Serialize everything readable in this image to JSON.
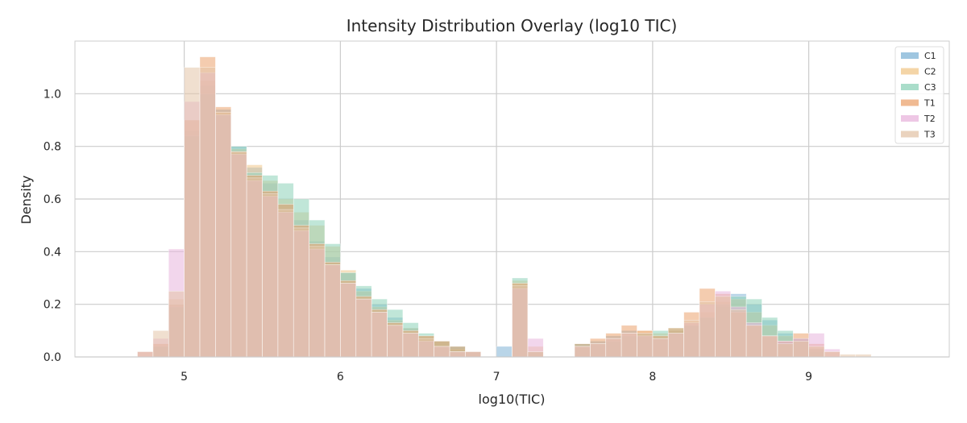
{
  "chart_data": {
    "type": "histogram",
    "title": "Intensity Distribution Overlay (log10 TIC)",
    "xlabel": "log10(TIC)",
    "ylabel": "Density",
    "xlim": [
      4.3,
      9.9
    ],
    "ylim": [
      0,
      1.2
    ],
    "xticks": [
      5,
      6,
      7,
      8,
      9
    ],
    "yticks": [
      0.0,
      0.2,
      0.4,
      0.6,
      0.8,
      1.0
    ],
    "grid": true,
    "legend_position": "top-right",
    "bin_width": 0.1,
    "series": [
      {
        "name": "C1",
        "color": "#7fb3d5",
        "bins": [
          [
            4.85,
            0.04
          ],
          [
            4.95,
            0.2
          ],
          [
            5.05,
            0.86
          ],
          [
            5.15,
            1.03
          ],
          [
            5.25,
            0.94
          ],
          [
            5.35,
            0.8
          ],
          [
            5.45,
            0.72
          ],
          [
            5.55,
            0.66
          ],
          [
            5.65,
            0.58
          ],
          [
            5.75,
            0.52
          ],
          [
            5.85,
            0.44
          ],
          [
            5.95,
            0.38
          ],
          [
            6.05,
            0.32
          ],
          [
            6.15,
            0.26
          ],
          [
            6.25,
            0.2
          ],
          [
            6.35,
            0.15
          ],
          [
            6.45,
            0.11
          ],
          [
            6.55,
            0.08
          ],
          [
            6.65,
            0.06
          ],
          [
            6.75,
            0.04
          ],
          [
            6.85,
            0.02
          ],
          [
            7.05,
            0.04
          ],
          [
            7.15,
            0.27
          ],
          [
            7.25,
            0.02
          ],
          [
            7.55,
            0.05
          ],
          [
            7.65,
            0.06
          ],
          [
            7.75,
            0.08
          ],
          [
            7.85,
            0.1
          ],
          [
            7.95,
            0.09
          ],
          [
            8.05,
            0.08
          ],
          [
            8.15,
            0.1
          ],
          [
            8.25,
            0.12
          ],
          [
            8.35,
            0.15
          ],
          [
            8.45,
            0.19
          ],
          [
            8.55,
            0.24
          ],
          [
            8.65,
            0.2
          ],
          [
            8.75,
            0.14
          ],
          [
            8.85,
            0.09
          ],
          [
            8.95,
            0.07
          ],
          [
            9.05,
            0.02
          ]
        ]
      },
      {
        "name": "C2",
        "color": "#f0c78a",
        "bins": [
          [
            4.85,
            0.05
          ],
          [
            4.95,
            0.22
          ],
          [
            5.05,
            0.9
          ],
          [
            5.15,
            1.05
          ],
          [
            5.25,
            0.93
          ],
          [
            5.35,
            0.79
          ],
          [
            5.45,
            0.73
          ],
          [
            5.55,
            0.67
          ],
          [
            5.65,
            0.6
          ],
          [
            5.75,
            0.55
          ],
          [
            5.85,
            0.5
          ],
          [
            5.95,
            0.42
          ],
          [
            6.05,
            0.33
          ],
          [
            6.15,
            0.25
          ],
          [
            6.25,
            0.19
          ],
          [
            6.35,
            0.14
          ],
          [
            6.45,
            0.11
          ],
          [
            6.55,
            0.08
          ],
          [
            6.65,
            0.06
          ],
          [
            6.75,
            0.03
          ],
          [
            6.85,
            0.02
          ],
          [
            7.15,
            0.29
          ],
          [
            7.25,
            0.04
          ],
          [
            7.55,
            0.04
          ],
          [
            7.65,
            0.05
          ],
          [
            7.75,
            0.07
          ],
          [
            7.85,
            0.09
          ],
          [
            7.95,
            0.1
          ],
          [
            8.05,
            0.09
          ],
          [
            8.15,
            0.1
          ],
          [
            8.25,
            0.13
          ],
          [
            8.35,
            0.17
          ],
          [
            8.45,
            0.21
          ],
          [
            8.55,
            0.22
          ],
          [
            8.65,
            0.17
          ],
          [
            8.75,
            0.12
          ],
          [
            8.85,
            0.08
          ],
          [
            8.95,
            0.06
          ],
          [
            9.05,
            0.03
          ]
        ]
      },
      {
        "name": "C3",
        "color": "#8dd1b8",
        "bins": [
          [
            4.85,
            0.04
          ],
          [
            4.95,
            0.19
          ],
          [
            5.05,
            0.84
          ],
          [
            5.15,
            1.0
          ],
          [
            5.25,
            0.92
          ],
          [
            5.35,
            0.8
          ],
          [
            5.45,
            0.7
          ],
          [
            5.55,
            0.69
          ],
          [
            5.65,
            0.66
          ],
          [
            5.75,
            0.6
          ],
          [
            5.85,
            0.52
          ],
          [
            5.95,
            0.43
          ],
          [
            6.05,
            0.32
          ],
          [
            6.15,
            0.27
          ],
          [
            6.25,
            0.22
          ],
          [
            6.35,
            0.18
          ],
          [
            6.45,
            0.13
          ],
          [
            6.55,
            0.09
          ],
          [
            6.65,
            0.06
          ],
          [
            6.75,
            0.04
          ],
          [
            6.85,
            0.02
          ],
          [
            7.15,
            0.3
          ],
          [
            7.25,
            0.02
          ],
          [
            7.55,
            0.05
          ],
          [
            7.65,
            0.05
          ],
          [
            7.75,
            0.06
          ],
          [
            7.85,
            0.08
          ],
          [
            7.95,
            0.09
          ],
          [
            8.05,
            0.1
          ],
          [
            8.15,
            0.11
          ],
          [
            8.25,
            0.12
          ],
          [
            8.35,
            0.15
          ],
          [
            8.45,
            0.2
          ],
          [
            8.55,
            0.23
          ],
          [
            8.65,
            0.22
          ],
          [
            8.75,
            0.15
          ],
          [
            8.85,
            0.1
          ],
          [
            8.95,
            0.07
          ],
          [
            9.05,
            0.03
          ]
        ]
      },
      {
        "name": "T1",
        "color": "#eba36e",
        "bins": [
          [
            4.75,
            0.02
          ],
          [
            4.85,
            0.05
          ],
          [
            4.95,
            0.2
          ],
          [
            5.05,
            0.9
          ],
          [
            5.15,
            1.14
          ],
          [
            5.25,
            0.95
          ],
          [
            5.35,
            0.78
          ],
          [
            5.45,
            0.69
          ],
          [
            5.55,
            0.63
          ],
          [
            5.65,
            0.58
          ],
          [
            5.75,
            0.5
          ],
          [
            5.85,
            0.43
          ],
          [
            5.95,
            0.36
          ],
          [
            6.05,
            0.29
          ],
          [
            6.15,
            0.23
          ],
          [
            6.25,
            0.18
          ],
          [
            6.35,
            0.13
          ],
          [
            6.45,
            0.1
          ],
          [
            6.55,
            0.08
          ],
          [
            6.65,
            0.06
          ],
          [
            6.75,
            0.04
          ],
          [
            6.85,
            0.02
          ],
          [
            7.15,
            0.28
          ],
          [
            7.25,
            0.02
          ],
          [
            7.55,
            0.05
          ],
          [
            7.65,
            0.07
          ],
          [
            7.75,
            0.09
          ],
          [
            7.85,
            0.12
          ],
          [
            7.95,
            0.1
          ],
          [
            8.05,
            0.08
          ],
          [
            8.15,
            0.11
          ],
          [
            8.25,
            0.17
          ],
          [
            8.35,
            0.26
          ],
          [
            8.45,
            0.24
          ],
          [
            8.55,
            0.17
          ],
          [
            8.65,
            0.12
          ],
          [
            8.75,
            0.08
          ],
          [
            8.85,
            0.06
          ],
          [
            8.95,
            0.09
          ],
          [
            9.05,
            0.05
          ],
          [
            9.15,
            0.02
          ]
        ]
      },
      {
        "name": "T2",
        "color": "#e8b4dc",
        "bins": [
          [
            4.75,
            0.02
          ],
          [
            4.85,
            0.07
          ],
          [
            4.95,
            0.41
          ],
          [
            5.05,
            0.97
          ],
          [
            5.15,
            1.08
          ],
          [
            5.25,
            0.92
          ],
          [
            5.35,
            0.77
          ],
          [
            5.45,
            0.67
          ],
          [
            5.55,
            0.61
          ],
          [
            5.65,
            0.55
          ],
          [
            5.75,
            0.48
          ],
          [
            5.85,
            0.41
          ],
          [
            5.95,
            0.35
          ],
          [
            6.05,
            0.28
          ],
          [
            6.15,
            0.22
          ],
          [
            6.25,
            0.17
          ],
          [
            6.35,
            0.12
          ],
          [
            6.45,
            0.09
          ],
          [
            6.55,
            0.06
          ],
          [
            6.65,
            0.04
          ],
          [
            6.75,
            0.02
          ],
          [
            6.85,
            0.02
          ],
          [
            7.15,
            0.26
          ],
          [
            7.25,
            0.07
          ],
          [
            7.55,
            0.04
          ],
          [
            7.65,
            0.05
          ],
          [
            7.75,
            0.07
          ],
          [
            7.85,
            0.09
          ],
          [
            7.95,
            0.08
          ],
          [
            8.05,
            0.07
          ],
          [
            8.15,
            0.09
          ],
          [
            8.25,
            0.13
          ],
          [
            8.35,
            0.2
          ],
          [
            8.45,
            0.25
          ],
          [
            8.55,
            0.19
          ],
          [
            8.65,
            0.13
          ],
          [
            8.75,
            0.08
          ],
          [
            8.85,
            0.06
          ],
          [
            8.95,
            0.07
          ],
          [
            9.05,
            0.09
          ],
          [
            9.15,
            0.03
          ]
        ]
      },
      {
        "name": "T3",
        "color": "#e3c4a8",
        "bins": [
          [
            4.75,
            0.02
          ],
          [
            4.85,
            0.1
          ],
          [
            4.95,
            0.25
          ],
          [
            5.05,
            1.1
          ],
          [
            5.15,
            1.1
          ],
          [
            5.25,
            0.93
          ],
          [
            5.35,
            0.78
          ],
          [
            5.45,
            0.68
          ],
          [
            5.55,
            0.62
          ],
          [
            5.65,
            0.56
          ],
          [
            5.75,
            0.49
          ],
          [
            5.85,
            0.42
          ],
          [
            5.95,
            0.35
          ],
          [
            6.05,
            0.28
          ],
          [
            6.15,
            0.22
          ],
          [
            6.25,
            0.17
          ],
          [
            6.35,
            0.12
          ],
          [
            6.45,
            0.09
          ],
          [
            6.55,
            0.07
          ],
          [
            6.65,
            0.04
          ],
          [
            6.75,
            0.02
          ],
          [
            6.85,
            0.02
          ],
          [
            7.15,
            0.27
          ],
          [
            7.25,
            0.02
          ],
          [
            7.55,
            0.04
          ],
          [
            7.65,
            0.05
          ],
          [
            7.75,
            0.07
          ],
          [
            7.85,
            0.09
          ],
          [
            7.95,
            0.09
          ],
          [
            8.05,
            0.07
          ],
          [
            8.15,
            0.09
          ],
          [
            8.25,
            0.14
          ],
          [
            8.35,
            0.21
          ],
          [
            8.45,
            0.23
          ],
          [
            8.55,
            0.18
          ],
          [
            8.65,
            0.12
          ],
          [
            8.75,
            0.08
          ],
          [
            8.85,
            0.05
          ],
          [
            8.95,
            0.06
          ],
          [
            9.05,
            0.04
          ],
          [
            9.15,
            0.02
          ],
          [
            9.25,
            0.01
          ],
          [
            9.35,
            0.01
          ]
        ]
      }
    ]
  }
}
